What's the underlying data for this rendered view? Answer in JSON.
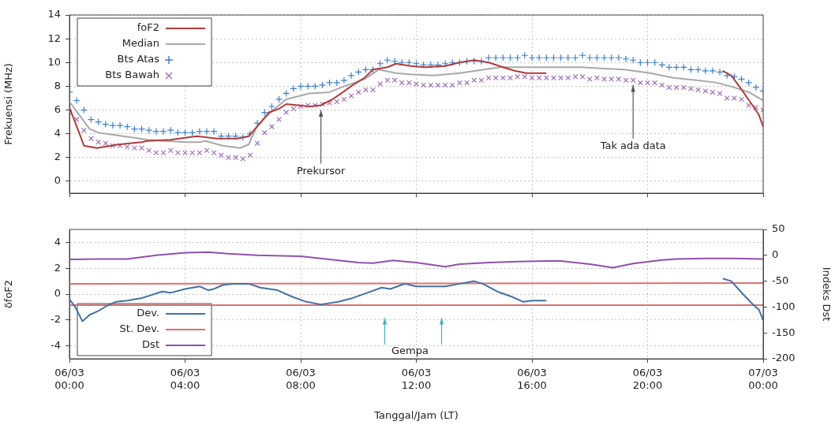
{
  "chart_data": [
    {
      "type": "line",
      "ylabel": "Frekuensi (MHz)",
      "xlim": [
        "--03-06T00:00",
        "--03-07T00:00"
      ],
      "xticks": [
        "--03-06T00:00",
        "--03-06T04:00",
        "--03-06T08:00",
        "--03-06T12:00",
        "--03-06T16:00",
        "--03-06T20:00",
        "--03-07T00:00"
      ],
      "ylim": [
        -1,
        14
      ],
      "yticks": [
        0,
        2,
        4,
        6,
        8,
        10,
        12,
        14
      ],
      "grid": true,
      "legend": "top left",
      "tick_labels": "y",
      "x": [
        "--03-06T00:00",
        "--03-06T00:15",
        "--03-06T00:30",
        "--03-06T00:45",
        "--03-06T01:00",
        "--03-06T01:15",
        "--03-06T01:30",
        "--03-06T01:45",
        "--03-06T02:00",
        "--03-06T02:15",
        "--03-06T02:30",
        "--03-06T02:45",
        "--03-06T03:00",
        "--03-06T03:15",
        "--03-06T03:30",
        "--03-06T03:45",
        "--03-06T04:00",
        "--03-06T04:15",
        "--03-06T04:30",
        "--03-06T04:45",
        "--03-06T05:00",
        "--03-06T05:15",
        "--03-06T05:30",
        "--03-06T05:45",
        "--03-06T06:00",
        "--03-06T06:15",
        "--03-06T06:30",
        "--03-06T06:45",
        "--03-06T07:00",
        "--03-06T07:15",
        "--03-06T07:30",
        "--03-06T07:45",
        "--03-06T08:00",
        "--03-06T08:15",
        "--03-06T08:30",
        "--03-06T08:45",
        "--03-06T09:00",
        "--03-06T09:15",
        "--03-06T09:30",
        "--03-06T09:45",
        "--03-06T10:00",
        "--03-06T10:15",
        "--03-06T10:30",
        "--03-06T10:45",
        "--03-06T11:00",
        "--03-06T11:15",
        "--03-06T11:30",
        "--03-06T11:45",
        "--03-06T12:00",
        "--03-06T12:15",
        "--03-06T12:30",
        "--03-06T12:45",
        "--03-06T13:00",
        "--03-06T13:15",
        "--03-06T13:30",
        "--03-06T13:45",
        "--03-06T14:00",
        "--03-06T14:15",
        "--03-06T14:30",
        "--03-06T14:45",
        "--03-06T15:00",
        "--03-06T15:15",
        "--03-06T15:30",
        "--03-06T15:45",
        "--03-06T16:00",
        "--03-06T16:15",
        "--03-06T16:30",
        "--03-06T16:45",
        "--03-06T17:00",
        "--03-06T17:15",
        "--03-06T17:30",
        "--03-06T17:45",
        "--03-06T18:00",
        "--03-06T18:15",
        "--03-06T18:30",
        "--03-06T18:45",
        "--03-06T19:00",
        "--03-06T19:15",
        "--03-06T19:30",
        "--03-06T19:45",
        "--03-06T20:00",
        "--03-06T20:15",
        "--03-06T20:30",
        "--03-06T20:45",
        "--03-06T21:00",
        "--03-06T21:15",
        "--03-06T21:30",
        "--03-06T21:45",
        "--03-06T22:00",
        "--03-06T22:15",
        "--03-06T22:30",
        "--03-06T22:45",
        "--03-06T23:00",
        "--03-06T23:15",
        "--03-06T23:30",
        "--03-06T23:45",
        "--03-07T00:00"
      ],
      "series": [
        {
          "name": "foF2",
          "color": "#b23a3a",
          "x": [
            "--03-06T00:00",
            "--03-06T00:20",
            "--03-06T00:30",
            "--03-06T00:57",
            "--03-06T01:42",
            "--03-06T02:30",
            "--03-06T02:42",
            "--03-06T03:30",
            "--03-06T04:24",
            "--03-06T05:06",
            "--03-06T05:48",
            "--03-06T06:12",
            "--03-06T06:36",
            "--03-06T06:54",
            "--03-06T07:15",
            "--03-06T07:30",
            "--03-06T07:54",
            "--03-06T08:18",
            "--03-06T08:42",
            "--03-06T09:06",
            "--03-06T09:24",
            "--03-06T09:48",
            "--03-06T10:12",
            "--03-06T10:30",
            "--03-06T11:00",
            "--03-06T11:18",
            "--03-06T11:48",
            "--03-06T12:18",
            "--03-06T13:00",
            "--03-06T13:30",
            "--03-06T14:00",
            "--03-06T14:30",
            "--03-06T15:00",
            "--03-06T15:24",
            "--03-06T15:48",
            "--03-06T16:30",
            "--03-06T19:30",
            "--03-06T22:36",
            "--03-06T22:54",
            "--03-06T23:12",
            "--03-06T23:36",
            "--03-06T23:51",
            "--03-07T00:00"
          ],
          "values": [
            6.2,
            4.1,
            3.0,
            2.8,
            3.1,
            3.3,
            3.4,
            3.5,
            3.8,
            3.6,
            3.6,
            3.8,
            4.9,
            5.8,
            6.1,
            6.5,
            6.4,
            6.3,
            6.4,
            6.9,
            7.4,
            8.1,
            8.7,
            9.4,
            9.6,
            9.9,
            9.7,
            9.6,
            9.7,
            10.0,
            10.2,
            10.0,
            9.6,
            9.3,
            9.1,
            9.1,
            null,
            9.3,
            8.9,
            7.9,
            6.5,
            5.6,
            4.6
          ]
        },
        {
          "name": "Median",
          "color": "#a8a8a8",
          "x": [
            "--03-06T00:00",
            "--03-06T00:42",
            "--03-06T01:00",
            "--03-06T02:09",
            "--03-06T02:42",
            "--03-06T04:00",
            "--03-06T04:30",
            "--03-06T04:42",
            "--03-06T05:18",
            "--03-06T05:54",
            "--03-06T06:12",
            "--03-06T06:30",
            "--03-06T07:00",
            "--03-06T07:30",
            "--03-06T08:18",
            "--03-06T09:00",
            "--03-06T09:24",
            "--03-06T10:12",
            "--03-06T10:42",
            "--03-06T11:18",
            "--03-06T11:48",
            "--03-06T12:36",
            "--03-06T13:30",
            "--03-06T14:54",
            "--03-06T15:48",
            "--03-06T17:42",
            "--03-06T18:24",
            "--03-06T19:12",
            "--03-06T20:06",
            "--03-06T20:54",
            "--03-06T21:42",
            "--03-06T22:24",
            "--03-06T23:00",
            "--03-06T23:30",
            "--03-07T00:00"
          ],
          "values": [
            6.7,
            4.4,
            4.1,
            3.7,
            3.5,
            3.3,
            3.3,
            3.4,
            3.0,
            2.8,
            3.1,
            4.7,
            5.9,
            6.9,
            7.4,
            7.5,
            7.9,
            8.6,
            9.4,
            9.1,
            9.0,
            8.9,
            9.1,
            9.6,
            9.6,
            9.6,
            9.5,
            9.4,
            9.1,
            8.7,
            8.5,
            8.3,
            7.9,
            7.5,
            6.8
          ]
        },
        {
          "name": "Bts Atas",
          "type": "scatter",
          "marker": "cross",
          "color": "#3a80d0",
          "values": [
            7.5,
            6.8,
            6.0,
            5.2,
            5.0,
            4.8,
            4.7,
            4.7,
            4.6,
            4.4,
            4.4,
            4.3,
            4.2,
            4.2,
            4.3,
            4.1,
            4.1,
            4.1,
            4.2,
            4.2,
            4.2,
            3.8,
            3.8,
            3.8,
            3.7,
            4.0,
            4.9,
            5.8,
            6.3,
            6.9,
            7.4,
            7.8,
            8.0,
            8.0,
            8.0,
            8.1,
            8.3,
            8.3,
            8.5,
            8.9,
            9.2,
            9.4,
            9.4,
            9.9,
            10.2,
            10.1,
            10.0,
            10.0,
            9.9,
            9.8,
            9.8,
            9.8,
            9.9,
            10.0,
            10.0,
            10.1,
            10.1,
            10.1,
            10.4,
            10.4,
            10.4,
            10.4,
            10.4,
            10.6,
            10.4,
            10.4,
            10.4,
            10.4,
            10.4,
            10.4,
            10.4,
            10.6,
            10.4,
            10.4,
            10.4,
            10.4,
            10.4,
            10.3,
            10.2,
            10.0,
            10.0,
            10.0,
            9.8,
            9.6,
            9.6,
            9.6,
            9.4,
            9.4,
            9.3,
            9.3,
            9.2,
            8.9,
            8.8,
            8.6,
            8.3,
            7.9,
            7.6
          ]
        },
        {
          "name": "Bts Bawah",
          "type": "scatter",
          "marker": "x",
          "color": "#a070b8",
          "values": [
            5.8,
            5.2,
            4.3,
            3.6,
            3.3,
            3.2,
            3.0,
            3.0,
            2.9,
            2.8,
            2.8,
            2.6,
            2.4,
            2.4,
            2.6,
            2.4,
            2.4,
            2.4,
            2.4,
            2.6,
            2.4,
            2.2,
            2.0,
            2.0,
            1.9,
            2.2,
            3.2,
            4.1,
            4.6,
            5.2,
            5.8,
            6.1,
            6.3,
            6.4,
            6.4,
            6.5,
            6.6,
            6.7,
            6.9,
            7.2,
            7.5,
            7.7,
            7.7,
            8.2,
            8.5,
            8.5,
            8.3,
            8.3,
            8.2,
            8.1,
            8.1,
            8.1,
            8.1,
            8.1,
            8.3,
            8.3,
            8.5,
            8.5,
            8.7,
            8.7,
            8.7,
            8.7,
            8.8,
            8.8,
            8.7,
            8.7,
            8.7,
            8.7,
            8.7,
            8.7,
            8.8,
            8.8,
            8.6,
            8.7,
            8.6,
            8.6,
            8.6,
            8.5,
            8.5,
            8.3,
            8.3,
            8.3,
            8.1,
            7.9,
            7.9,
            7.9,
            7.8,
            7.7,
            7.6,
            7.5,
            7.4,
            7.0,
            7.0,
            6.9,
            6.4,
            6.2,
            6.0
          ]
        }
      ],
      "annotations": [
        {
          "text": "Prekursor",
          "x": "--03-06T08:42",
          "y": 6.4
        },
        {
          "text": "Tak ada data",
          "x": "--03-06T19:30",
          "y": 8.5
        }
      ]
    },
    {
      "type": "line",
      "xlabel": "Tanggal/Jam (LT)",
      "ylabel": "δfoF2",
      "y2label": "Indeks Dst",
      "xlim": [
        "--03-06T00:00",
        "--03-07T00:00"
      ],
      "xticks": [
        {
          "value": "--03-06T00:00",
          "label": "06/03\n00:00"
        },
        {
          "value": "--03-06T04:00",
          "label": "06/03\n04:00"
        },
        {
          "value": "--03-06T08:00",
          "label": "06/03\n08:00"
        },
        {
          "value": "--03-06T12:00",
          "label": "06/03\n12:00"
        },
        {
          "value": "--03-06T16:00",
          "label": "06/03\n16:00"
        },
        {
          "value": "--03-06T20:00",
          "label": "06/03\n20:00"
        },
        {
          "value": "--03-07T00:00",
          "label": "07/03\n00:00"
        }
      ],
      "ylim": [
        -5,
        5
      ],
      "yticks": [
        -4,
        -2,
        0,
        2,
        4
      ],
      "y2lim": [
        -200,
        50
      ],
      "y2ticks": [
        -200,
        -150,
        -100,
        -50,
        0,
        50
      ],
      "grid": true,
      "legend": "bottom left",
      "series": [
        {
          "name": "Dev.",
          "color": "#3f72a8",
          "x": [
            "--03-06T00:00",
            "--03-06T00:12",
            "--03-06T00:27",
            "--03-06T00:42",
            "--03-06T01:00",
            "--03-06T01:18",
            "--03-06T01:36",
            "--03-06T02:00",
            "--03-06T02:30",
            "--03-06T02:48",
            "--03-06T03:12",
            "--03-06T03:30",
            "--03-06T04:00",
            "--03-06T04:30",
            "--03-06T04:48",
            "--03-06T05:00",
            "--03-06T05:18",
            "--03-06T05:42",
            "--03-06T06:12",
            "--03-06T06:36",
            "--03-06T07:12",
            "--03-06T07:42",
            "--03-06T08:12",
            "--03-06T08:42",
            "--03-06T09:18",
            "--03-06T09:48",
            "--03-06T10:18",
            "--03-06T10:48",
            "--03-06T11:06",
            "--03-06T11:36",
            "--03-06T12:00",
            "--03-06T12:30",
            "--03-06T13:00",
            "--03-06T13:30",
            "--03-06T14:00",
            "--03-06T14:18",
            "--03-06T14:48",
            "--03-06T15:18",
            "--03-06T15:42",
            "--03-06T16:00",
            "--03-06T16:30",
            "--03-06T19:30",
            "--03-06T22:36",
            "--03-06T22:54",
            "--03-06T23:18",
            "--03-06T23:36",
            "--03-06T23:51",
            "--03-07T00:00"
          ],
          "values": [
            -0.4,
            -1.0,
            -2.1,
            -1.6,
            -1.3,
            -0.9,
            -0.6,
            -0.5,
            -0.3,
            -0.1,
            0.2,
            0.1,
            0.4,
            0.6,
            0.3,
            0.4,
            0.7,
            0.8,
            0.8,
            0.5,
            0.3,
            -0.2,
            -0.6,
            -0.8,
            -0.6,
            -0.3,
            0.1,
            0.5,
            0.4,
            0.8,
            0.6,
            0.6,
            0.6,
            0.8,
            1.0,
            0.8,
            0.2,
            -0.2,
            -0.6,
            -0.5,
            -0.5,
            null,
            1.2,
            1.0,
            0,
            -0.7,
            -1.2,
            -2.0
          ]
        },
        {
          "name": "St. Dev.",
          "color": "#e07070",
          "x": [
            "--03-06T00:00",
            "--03-07T00:00"
          ],
          "values": [
            0.8,
            0.85
          ]
        },
        {
          "color": "#e07070",
          "x": [
            "--03-06T00:00",
            "--03-07T00:00"
          ],
          "values": [
            -0.85,
            -0.85
          ]
        },
        {
          "name": "Dst",
          "axis": "y2",
          "color": "#9050b0",
          "x": [
            "--03-06T00:00",
            "--03-06T01:00",
            "--03-06T02:00",
            "--03-06T03:00",
            "--03-06T04:00",
            "--03-06T04:48",
            "--03-06T05:30",
            "--03-06T06:30",
            "--03-06T08:00",
            "--03-06T09:00",
            "--03-06T10:00",
            "--03-06T10:30",
            "--03-06T11:12",
            "--03-06T12:00",
            "--03-06T13:00",
            "--03-06T13:30",
            "--03-06T14:30",
            "--03-06T15:30",
            "--03-06T16:30",
            "--03-06T17:00",
            "--03-06T18:00",
            "--03-06T18:48",
            "--03-06T19:30",
            "--03-06T20:30",
            "--03-06T21:00",
            "--03-06T22:00",
            "--03-06T23:00",
            "--03-07T00:00"
          ],
          "values": [
            -8,
            -7,
            -7,
            0,
            5,
            6,
            3,
            0,
            -2,
            -8,
            -14,
            -15,
            -10,
            -14,
            -22,
            -17,
            -14,
            -12,
            -11,
            -11,
            -17,
            -24,
            -16,
            -9,
            -7,
            -6,
            -6,
            -7
          ]
        }
      ],
      "annotations": [
        "Gempa"
      ]
    }
  ]
}
